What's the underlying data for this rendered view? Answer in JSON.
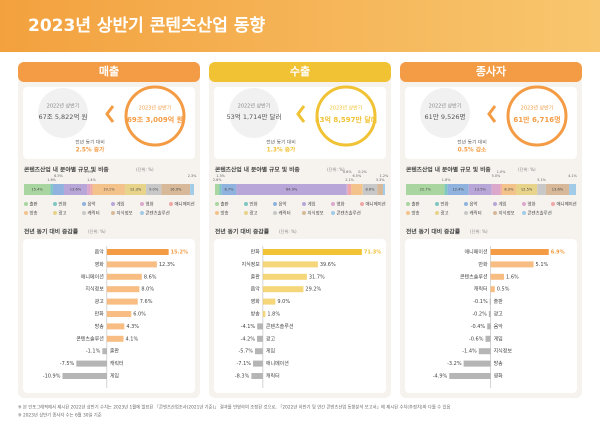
{
  "header": {
    "title": "2023년 상반기 콘텐츠산업 동향"
  },
  "category_colors": [
    "#a9d6a0",
    "#7fc7c2",
    "#8fb3de",
    "#b8a6d9",
    "#dba8cc",
    "#f0a7a7",
    "#f4c38c",
    "#e7d38a",
    "#c8c8c8",
    "#d7b999",
    "#a2cbe8"
  ],
  "panels": [
    {
      "title": "매출",
      "color": "#f39c45",
      "prev_label": "2022년 상반기",
      "prev_value": "67조 5,822억 원",
      "curr_label": "2023년 상반기",
      "curr_value": "69조 3,009억 원",
      "growth_label": "전년 동기 대비",
      "growth_value": "2.5% 증가",
      "share": {
        "type": "bar",
        "title": "콘텐츠산업 내 분야별 규모 및 비중",
        "unit": "(단위: %)",
        "categories": [
          "출판",
          "만화",
          "음악",
          "게임",
          "영화",
          "애니메이션",
          "방송",
          "광고",
          "캐릭터",
          "지식정보",
          "콘텐츠솔루션"
        ],
        "values": [
          15.4,
          1.6,
          6.5,
          13.6,
          1.9,
          1.4,
          19.1,
          12.3,
          9.0,
          16.9,
          2.3
        ],
        "value_labels": [
          "15.4%",
          "1.6%",
          "6.5%",
          "13.6%",
          "1.9%",
          "1.4%",
          "19.1%",
          "12.3%",
          "9.0%",
          "16.9%",
          "2.3%"
        ]
      },
      "change": {
        "type": "bar",
        "title": "전년 동기 대비 증감률",
        "unit": "(단위: %)",
        "xlim": [
          -12,
          17
        ],
        "categories": [
          "음악",
          "영화",
          "애니메이션",
          "지식정보",
          "광고",
          "만화",
          "방송",
          "콘텐츠솔루션",
          "출판",
          "캐릭터",
          "게임"
        ],
        "values": [
          15.2,
          12.3,
          8.6,
          8.0,
          7.6,
          6.0,
          4.3,
          4.1,
          -1.1,
          -7.5,
          -10.9
        ],
        "value_labels": [
          "15.2%",
          "12.3%",
          "8.6%",
          "8.0%",
          "7.6%",
          "6.0%",
          "4.3%",
          "4.1%",
          "-1.1%",
          "-7.5%",
          "-10.9%"
        ]
      }
    },
    {
      "title": "수출",
      "color": "#f0c234",
      "prev_label": "2022년 상반기",
      "prev_value": "53억 1,714만 달러",
      "curr_label": "2023년 상반기",
      "curr_value": "53억 8,597만 달러",
      "growth_label": "전년 동기 대비",
      "growth_value": "1.3% 증가",
      "share": {
        "type": "bar",
        "title": "콘텐츠산업 내 분야별 규모 및 비중",
        "unit": "(단위: %)",
        "categories": [
          "출판",
          "만화",
          "음악",
          "게임",
          "영화",
          "애니메이션",
          "방송",
          "광고",
          "캐릭터",
          "지식정보",
          "콘텐츠솔루션"
        ],
        "values": [
          2.6,
          1.3,
          8.7,
          64.9,
          0.6,
          2.1,
          6.5,
          0.2,
          8.6,
          3.3,
          1.2
        ],
        "value_labels": [
          "2.6%",
          "1.3%",
          "8.7%",
          "64.9%",
          "0.6%",
          "2.1%",
          "6.5%",
          "0.2%",
          "8.6%",
          "3.3%",
          "1.2%"
        ]
      },
      "change": {
        "type": "bar",
        "title": "전년 동기 대비 증감률",
        "unit": "(단위: %)",
        "xlim": [
          -10,
          75
        ],
        "categories": [
          "만화",
          "지식정보",
          "출판",
          "음악",
          "영화",
          "방송",
          "콘텐츠솔루션",
          "광고",
          "게임",
          "애니메이션",
          "캐릭터"
        ],
        "values": [
          71.3,
          39.6,
          31.7,
          29.2,
          9.0,
          1.8,
          -4.1,
          -4.2,
          -5.7,
          -7.1,
          -8.3
        ],
        "value_labels": [
          "71.3%",
          "39.6%",
          "31.7%",
          "29.2%",
          "9.0%",
          "1.8%",
          "-4.1%",
          "-4.2%",
          "-5.7%",
          "-7.1%",
          "-8.3%"
        ]
      }
    },
    {
      "title": "종사자",
      "color": "#f39c45",
      "prev_label": "2022년 상반기",
      "prev_value": "61만 9,526명",
      "curr_label": "2023년 상반기",
      "curr_value": "61만 6,716명",
      "growth_label": "전년 동기 대비",
      "growth_value": "0.5% 감소",
      "share": {
        "type": "bar",
        "title": "콘텐츠산업 내 분야별 규모 및 비중",
        "unit": "(단위: %)",
        "categories": [
          "출판",
          "만화",
          "음악",
          "게임",
          "영화",
          "애니메이션",
          "방송",
          "광고",
          "캐릭터",
          "지식정보",
          "콘텐츠솔루션"
        ],
        "values": [
          22.7,
          1.8,
          12.4,
          13.5,
          5.0,
          1.0,
          8.3,
          12.5,
          5.1,
          13.6,
          4.1
        ],
        "value_labels": [
          "22.7%",
          "1.8%",
          "12.4%",
          "13.5%",
          "5.0%",
          "1.0%",
          "8.3%",
          "12.5%",
          "5.1%",
          "13.6%",
          "4.1%"
        ]
      },
      "change": {
        "type": "bar",
        "title": "전년 동기 대비 증감률",
        "unit": "(단위: %)",
        "xlim": [
          -6,
          8
        ],
        "categories": [
          "애니메이션",
          "만화",
          "콘텐츠솔루션",
          "캐릭터",
          "출판",
          "광고",
          "음악",
          "게임",
          "지식정보",
          "방송",
          "영화"
        ],
        "values": [
          6.9,
          5.1,
          1.6,
          0.5,
          -0.1,
          -0.2,
          -0.4,
          -0.6,
          -1.4,
          -3.2,
          -4.9
        ],
        "value_labels": [
          "6.9%",
          "5.1%",
          "1.6%",
          "0.5%",
          "-0.1%",
          "-0.2%",
          "-0.4%",
          "-0.6%",
          "-1.4%",
          "-3.2%",
          "-4.9%"
        ]
      }
    }
  ],
  "footnotes": [
    "※ 본 인포그래픽에서 제시된 2022년 상반기 수치는 2023년 1월에 발표된 「콘텐츠산업조사(2021년 기준)」 결과를 반영하여 조정된 것으로, 「2022년 하반기 및 연간 콘텐츠산업 동향분석 보고서」에 제시된 수치(추정치)와 다를 수 있음",
    "※ 2023년 상반기 종사자 수는 6월 30일 기준"
  ]
}
